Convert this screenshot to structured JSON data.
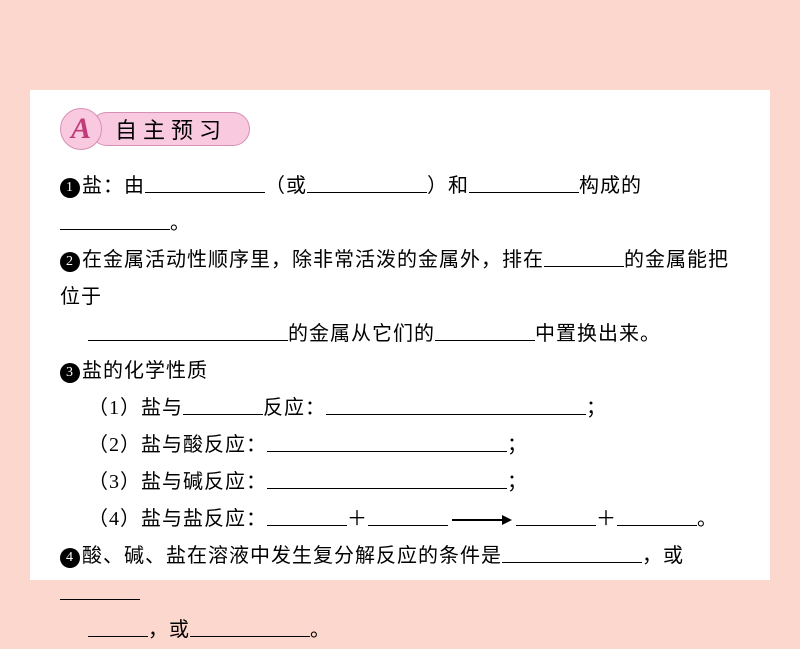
{
  "badge": {
    "letter": "A",
    "title": "自主预习"
  },
  "items": {
    "i1": {
      "prefix": "盐：由",
      "mid1": "（或",
      "mid2": "）和",
      "mid3": "构成的",
      "end": "。"
    },
    "i2": {
      "prefix": "在金属活动性顺序里，除非常活泼的金属外，排在",
      "suffix1": "的金属能把位于",
      "line2a": "的金属从它们的",
      "line2b": "中置换出来。"
    },
    "i3": {
      "title": "盐的化学性质",
      "s1a": "（1）盐与",
      "s1b": "反应：",
      "semi": "；",
      "s2": "（2）盐与酸反应：",
      "s3": "（3）盐与碱反应：",
      "s4": "（4）盐与盐反应：",
      "plus": "＋",
      "end": "。"
    },
    "i4": {
      "prefix": "酸、碱、盐在溶液中发生复分解反应的条件是",
      "mid1": "，或",
      "mid2": "，或",
      "end": "。"
    }
  }
}
